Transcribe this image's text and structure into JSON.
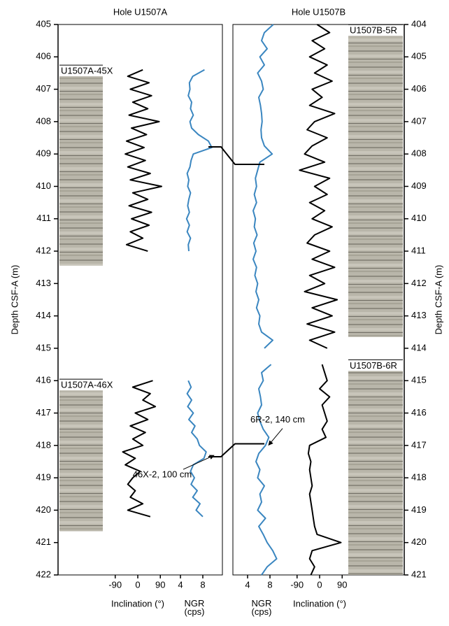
{
  "chart_data": [
    {
      "type": "line",
      "title": "Hole U1507A",
      "ylabel": "Depth CSF-A (m)",
      "y_inverted": true,
      "axis_side": "left",
      "ylim": [
        405,
        422
      ],
      "yticks": [
        405,
        406,
        407,
        408,
        409,
        410,
        411,
        412,
        413,
        414,
        415,
        416,
        417,
        418,
        419,
        420,
        421,
        422
      ],
      "series": [
        {
          "name": "Inclination (°)",
          "color": "#000000",
          "xlim": [
            -120,
            120
          ],
          "xticks": [
            -90,
            0,
            90
          ],
          "depth": [
            406.4,
            406.6,
            406.8,
            407.0,
            407.2,
            407.4,
            407.6,
            407.8,
            408.0,
            408.2,
            408.4,
            408.6,
            408.8,
            409.0,
            409.2,
            409.4,
            409.6,
            409.8,
            410.0,
            410.2,
            410.4,
            410.6,
            410.8,
            411.0,
            411.2,
            411.4,
            411.6,
            411.8,
            412.0,
            414.0,
            416.0,
            416.2,
            416.4,
            416.6,
            416.8,
            417.0,
            417.2,
            417.4,
            417.6,
            417.8,
            418.0,
            418.2,
            418.4,
            418.6,
            418.8,
            419.0,
            419.2,
            419.4,
            419.6,
            419.8,
            420.0,
            420.2
          ],
          "values": [
            20,
            -40,
            45,
            -30,
            55,
            -20,
            40,
            -35,
            85,
            -25,
            35,
            -45,
            25,
            -50,
            30,
            -40,
            50,
            -30,
            95,
            -20,
            40,
            -35,
            55,
            -25,
            45,
            -30,
            20,
            -45,
            40,
            null,
            60,
            -20,
            50,
            20,
            70,
            -10,
            40,
            -30,
            30,
            -20,
            20,
            -60,
            -10,
            -50,
            10,
            -20,
            -40,
            -10,
            -30,
            20,
            -40,
            50
          ]
        },
        {
          "name": "NGR (cps)",
          "color": "#3a86c0",
          "xlim": [
            3,
            10
          ],
          "xticks": [
            4,
            8
          ],
          "depth": [
            406.4,
            406.6,
            406.8,
            407.0,
            407.2,
            407.4,
            407.6,
            407.8,
            408.0,
            408.2,
            408.4,
            408.6,
            408.8,
            409.0,
            409.2,
            409.4,
            409.6,
            409.8,
            410.0,
            410.2,
            410.4,
            410.6,
            410.8,
            411.0,
            411.2,
            411.4,
            411.6,
            411.8,
            412.0,
            414.0,
            416.0,
            416.2,
            416.4,
            416.6,
            416.8,
            417.0,
            417.2,
            417.4,
            417.6,
            417.8,
            418.0,
            418.2,
            418.4,
            418.6,
            418.8,
            419.0,
            419.2,
            419.4,
            419.6,
            419.8,
            420.0,
            420.2
          ],
          "values": [
            8.3,
            6.2,
            5.6,
            5.7,
            5.4,
            6.0,
            5.8,
            6.3,
            5.7,
            6.0,
            7.2,
            9.0,
            9.6,
            6.3,
            5.9,
            5.7,
            5.2,
            5.5,
            5.3,
            5.8,
            5.5,
            5.3,
            5.6,
            5.1,
            5.6,
            5.2,
            5.8,
            5.4,
            5.5,
            null,
            5.4,
            5.9,
            5.2,
            6.0,
            5.3,
            6.3,
            5.5,
            6.6,
            6.0,
            7.0,
            7.4,
            8.6,
            8.2,
            6.3,
            5.8,
            6.5,
            5.9,
            7.0,
            6.2,
            7.5,
            6.8,
            8.0
          ]
        }
      ],
      "cores": [
        {
          "label": "U1507A-45X",
          "top": 406.6,
          "bottom": 412.45
        },
        {
          "label": "U1507A-46X",
          "top": 416.3,
          "bottom": 420.65
        }
      ]
    },
    {
      "type": "line",
      "title": "Hole U1507B",
      "ylabel": "Depth CSF-A (m)",
      "y_inverted": true,
      "axis_side": "right",
      "ylim": [
        404,
        421
      ],
      "yticks": [
        404,
        405,
        406,
        407,
        408,
        409,
        410,
        411,
        412,
        413,
        414,
        415,
        416,
        417,
        418,
        419,
        420,
        421
      ],
      "series": [
        {
          "name": "NGR (cps)",
          "color": "#3a86c0",
          "xlim": [
            3,
            10
          ],
          "xticks": [
            4,
            8
          ],
          "depth": [
            404.0,
            404.25,
            404.5,
            404.75,
            405.0,
            405.25,
            405.5,
            405.75,
            406.0,
            406.25,
            406.5,
            406.75,
            407.0,
            407.25,
            407.5,
            407.75,
            408.0,
            408.25,
            408.5,
            408.75,
            409.0,
            409.25,
            409.5,
            409.75,
            410.0,
            410.25,
            410.5,
            410.75,
            411.0,
            411.25,
            411.5,
            411.75,
            412.0,
            412.25,
            412.5,
            412.75,
            413.0,
            413.25,
            413.5,
            413.75,
            414.0,
            414.25,
            414.5,
            414.75,
            415.0,
            415.25,
            415.5,
            415.75,
            416.0,
            416.25,
            416.5,
            416.75,
            417.0,
            417.25,
            417.5,
            417.75,
            418.0,
            418.25,
            418.5,
            418.75,
            419.0,
            419.25,
            419.5,
            419.75,
            420.0,
            420.25,
            420.5,
            420.75,
            421.0
          ],
          "values": [
            8.6,
            7.0,
            6.5,
            7.5,
            6.2,
            7.0,
            5.8,
            6.5,
            6.8,
            6.0,
            6.3,
            6.5,
            6.6,
            6.4,
            6.5,
            7.0,
            8.4,
            6.2,
            5.8,
            5.4,
            5.6,
            5.2,
            5.6,
            5.0,
            5.4,
            5.2,
            5.7,
            5.1,
            5.5,
            5.0,
            5.6,
            5.3,
            5.8,
            5.5,
            6.0,
            5.6,
            6.2,
            6.0,
            6.5,
            8.5,
            7.0,
            null,
            8.2,
            6.5,
            6.8,
            6.0,
            6.3,
            6.5,
            5.8,
            6.2,
            6.8,
            7.8,
            7.2,
            6.0,
            5.5,
            6.2,
            5.8,
            7.0,
            6.2,
            6.5,
            5.8,
            7.2,
            6.0,
            6.8,
            7.5,
            8.5,
            9.2,
            7.5,
            6.5
          ]
        },
        {
          "name": "Inclination (°)",
          "color": "#000000",
          "xlim": [
            -120,
            120
          ],
          "xticks": [
            -90,
            0,
            90
          ],
          "depth": [
            404.0,
            404.25,
            404.5,
            404.75,
            405.0,
            405.25,
            405.5,
            405.75,
            406.0,
            406.25,
            406.5,
            406.75,
            407.0,
            407.25,
            407.5,
            407.75,
            408.0,
            408.25,
            408.5,
            408.75,
            409.0,
            409.25,
            409.5,
            409.75,
            410.0,
            410.25,
            410.5,
            410.75,
            411.0,
            411.25,
            411.5,
            411.75,
            412.0,
            412.25,
            412.5,
            412.75,
            413.0,
            413.25,
            413.5,
            413.75,
            414.0,
            414.25,
            414.5,
            414.75,
            415.0,
            415.25,
            415.5,
            415.75,
            416.0,
            416.25,
            416.5,
            416.75,
            417.0,
            417.25,
            417.5,
            417.75,
            418.0,
            418.25,
            418.5,
            418.75,
            419.0,
            419.25,
            419.5,
            419.75,
            420.0,
            420.25,
            420.5,
            420.75,
            421.0
          ],
          "values": [
            -10,
            40,
            -30,
            20,
            -40,
            30,
            -20,
            50,
            -30,
            10,
            -40,
            60,
            -20,
            -50,
            30,
            -30,
            -60,
            20,
            -80,
            40,
            -20,
            30,
            -40,
            20,
            -30,
            50,
            -20,
            -50,
            40,
            -30,
            60,
            -40,
            20,
            -60,
            70,
            -30,
            50,
            -50,
            60,
            -40,
            30,
            null,
            10,
            20,
            30,
            0,
            40,
            10,
            20,
            30,
            10,
            25,
            -40,
            -45,
            -35,
            -40,
            -35,
            -30,
            -40,
            -35,
            -30,
            -25,
            -20,
            -10,
            85,
            -30,
            -40,
            -20,
            -35
          ]
        }
      ],
      "cores": [
        {
          "label": "U1507B-5R",
          "top": 404.35,
          "bottom": 413.65
        },
        {
          "label": "U1507B-6R",
          "top": 414.7,
          "bottom": 421.0
        }
      ]
    }
  ],
  "ties": [
    {
      "hole_a_depth": 408.78,
      "hole_b_depth": 408.32
    },
    {
      "hole_a_depth": 418.35,
      "hole_b_depth": 416.95,
      "label_a": "46X-2, 100 cm",
      "label_b": "6R-2, 140 cm"
    }
  ]
}
